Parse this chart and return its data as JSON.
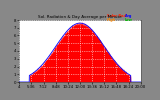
{
  "title": "Sol. Radiation & Day Average per Minute",
  "bg_color": "#888888",
  "plot_bg_color": "#ffffff",
  "grid_color": "#ffffff",
  "fill_color": "#ff0000",
  "avg_line_color": "#0000ff",
  "legend_text": [
    "Solar Rad",
    "Avg",
    "High",
    "Low"
  ],
  "legend_colors": [
    "#ff2200",
    "#0000ff",
    "#ff8800",
    "#00bb00"
  ],
  "x_labels": [
    "4",
    "5:36",
    "7:12",
    "8:48",
    "10:24",
    "12:00",
    "13:36",
    "15:12",
    "16:48",
    "18:24",
    "20:00"
  ],
  "y_labels": [
    "0",
    "1",
    "2",
    "3",
    "4",
    "5",
    "6",
    "7",
    "8"
  ],
  "ylim": [
    0,
    8
  ],
  "xlim": [
    0,
    960
  ],
  "num_points": 961,
  "rise": 80,
  "set_": 880,
  "peak_value": 7.6
}
